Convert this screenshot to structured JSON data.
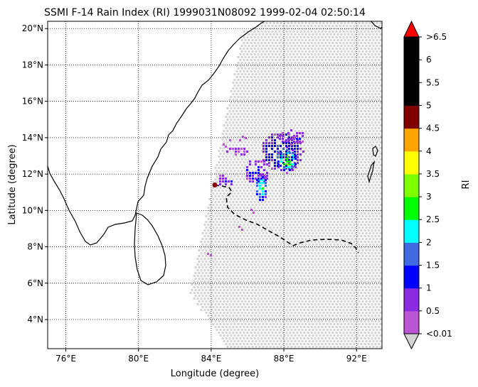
{
  "title": "SSMI F-14 Rain Index (RI) 1999031N08092 1999-02-04 02:50:14",
  "xlabel": "Longitude (degree)",
  "ylabel": "Latitude (degree)",
  "map": {
    "lon_range": [
      75.0,
      93.4
    ],
    "lat_range": [
      2.4,
      20.4
    ],
    "lon_ticks": [
      76,
      80,
      84,
      88,
      92
    ],
    "lon_tick_labels": [
      "76°E",
      "80°E",
      "84°E",
      "88°E",
      "92°E"
    ],
    "lat_ticks": [
      4,
      6,
      8,
      10,
      12,
      14,
      16,
      18,
      20
    ],
    "lat_tick_labels": [
      "4°N",
      "6°N",
      "8°N",
      "10°N",
      "12°N",
      "14°N",
      "16°N",
      "18°N",
      "20°N"
    ],
    "grid": "dotted",
    "features": [
      "coastline",
      "swath-no-rain",
      "rain-pixels",
      "storm-track"
    ],
    "no_rain_color": "#d3d3d3",
    "track_color": "#000000",
    "storm_marker": {
      "lon": 84.2,
      "lat": 11.4,
      "color": "#8b0000"
    }
  },
  "colorbar": {
    "label": "RI",
    "tick_labels": [
      "<0.01",
      "0.5",
      "1",
      "1.5",
      "2",
      "2.5",
      "3",
      "3.5",
      "4",
      "4.5",
      "5",
      "5.5",
      "6",
      ">6.5"
    ],
    "colors": [
      "#ba55d3",
      "#8a2be2",
      "#0000ff",
      "#4169e1",
      "#00ffff",
      "#00ff00",
      "#7fff00",
      "#ffff00",
      "#ffa500",
      "#800000",
      "#000000",
      "#000000",
      "#000000"
    ],
    "under_color": "#d3d3d3",
    "over_color": "#ff0000"
  }
}
